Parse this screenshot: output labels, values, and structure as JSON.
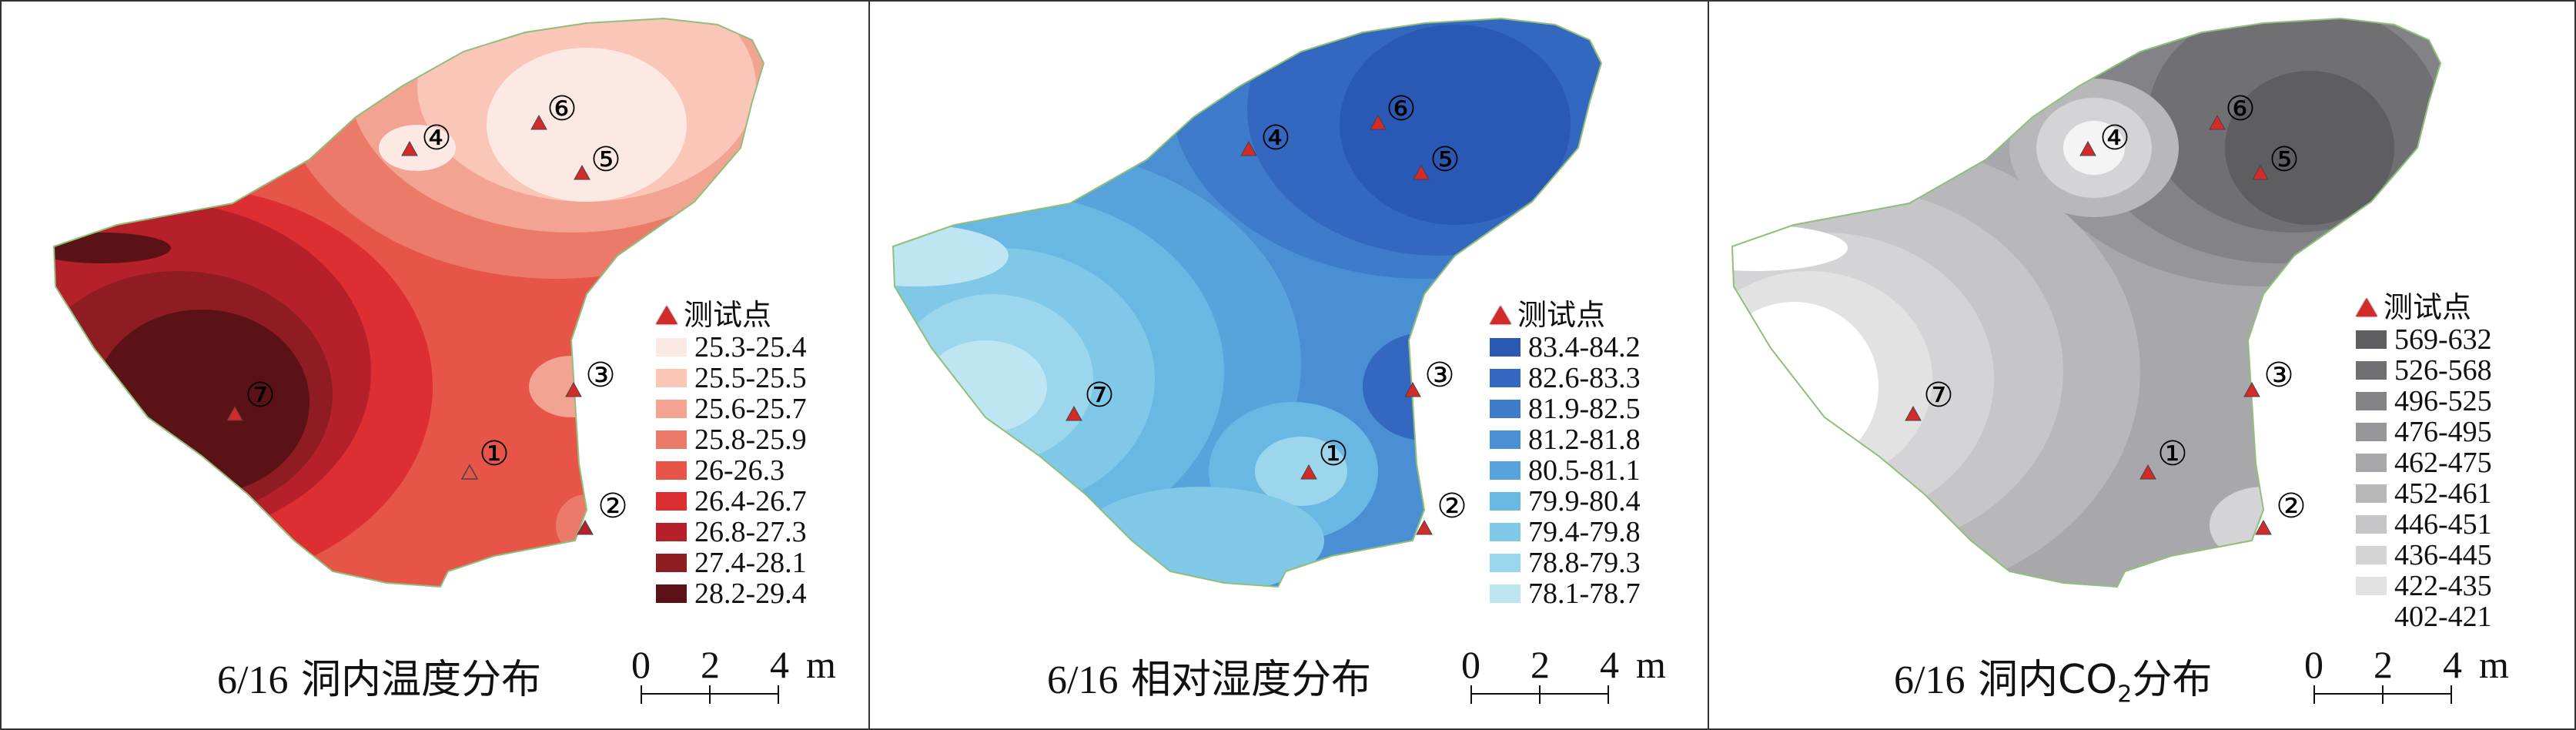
{
  "marker_legend_label": "测试点",
  "scale_labels": [
    "0",
    "2",
    "4",
    "m"
  ],
  "points": [
    {
      "id": "1",
      "symbol": "①"
    },
    {
      "id": "2",
      "symbol": "②"
    },
    {
      "id": "3",
      "symbol": "③"
    },
    {
      "id": "4",
      "symbol": "④"
    },
    {
      "id": "5",
      "symbol": "⑤"
    },
    {
      "id": "6",
      "symbol": "⑥"
    },
    {
      "id": "7",
      "symbol": "⑦"
    }
  ],
  "panels": [
    {
      "caption_prefix": "6/16",
      "caption_text": "洞内温度分布",
      "caption_sub": "",
      "caption_suffix": "",
      "legend": [
        {
          "label": "25.3-25.4",
          "color": "#fde9e4"
        },
        {
          "label": "25.5-25.5",
          "color": "#f9c6b8"
        },
        {
          "label": "25.6-25.7",
          "color": "#f3a391"
        },
        {
          "label": "25.8-25.9",
          "color": "#ec7a69"
        },
        {
          "label": "26-26.3",
          "color": "#e75448"
        },
        {
          "label": "26.4-26.7",
          "color": "#dd2e32"
        },
        {
          "label": "26.8-27.3",
          "color": "#b6202a"
        },
        {
          "label": "27.4-28.1",
          "color": "#8e1c22"
        },
        {
          "label": "28.2-29.4",
          "color": "#5a1216"
        }
      ]
    },
    {
      "caption_prefix": "6/16",
      "caption_text": "相对湿度分布",
      "caption_sub": "",
      "caption_suffix": "",
      "legend": [
        {
          "label": "83.4-84.2",
          "color": "#2a58b5"
        },
        {
          "label": "82.6-83.3",
          "color": "#3467c0"
        },
        {
          "label": "81.9-82.5",
          "color": "#3f7bcb"
        },
        {
          "label": "81.2-81.8",
          "color": "#4a8ed4"
        },
        {
          "label": "80.5-81.1",
          "color": "#58a3dc"
        },
        {
          "label": "79.9-80.4",
          "color": "#69b7e3"
        },
        {
          "label": "79.4-79.8",
          "color": "#7fc8e8"
        },
        {
          "label": "78.8-79.3",
          "color": "#9bd6ec"
        },
        {
          "label": "78.1-78.7",
          "color": "#bde6f2"
        }
      ]
    },
    {
      "caption_prefix": "6/16",
      "caption_text": "洞内CO",
      "caption_sub": "2",
      "caption_suffix": "分布",
      "legend": [
        {
          "label": "569-632",
          "color": "#5d5d62"
        },
        {
          "label": "526-568",
          "color": "#6f6f74"
        },
        {
          "label": "496-525",
          "color": "#828287"
        },
        {
          "label": "476-495",
          "color": "#96969a"
        },
        {
          "label": "462-475",
          "color": "#a8a8ac"
        },
        {
          "label": "452-461",
          "color": "#b8b8bb"
        },
        {
          "label": "446-451",
          "color": "#c6c6c8"
        },
        {
          "label": "436-445",
          "color": "#d4d4d6"
        },
        {
          "label": "422-435",
          "color": "#e2e2e3"
        },
        {
          "label": "402-421",
          "color": ""
        }
      ]
    }
  ]
}
